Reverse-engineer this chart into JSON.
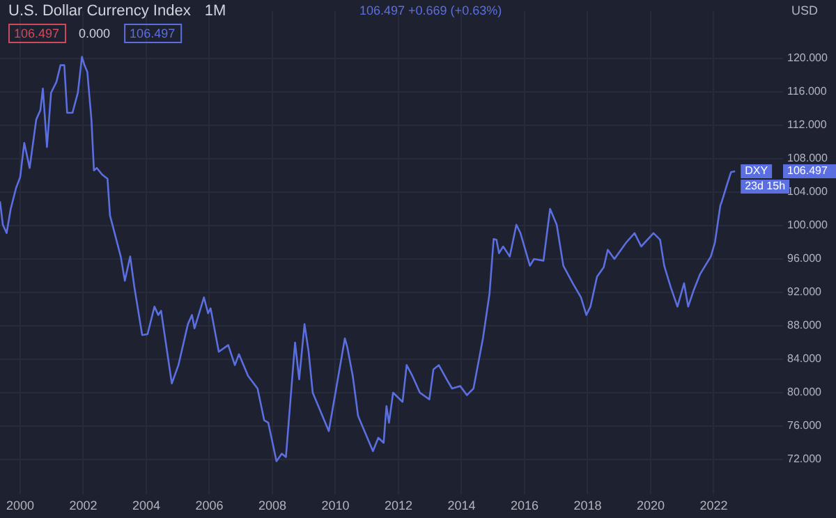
{
  "chart_data": {
    "type": "line",
    "title": "U.S. Dollar Currency Index",
    "subtitle": "1M",
    "ylabel": "USD",
    "annotations": [
      "106.497",
      "0.000",
      "106.497",
      "106.497 +0.669 (+0.63%)",
      {
        "text": "DXY",
        "x": 2022.68,
        "y": 106.5
      },
      "106.497",
      "23d 15h"
    ],
    "xlim": [
      1999.36,
      2024.2
    ],
    "xticks": [
      2000,
      2002,
      2004,
      2006,
      2008,
      2010,
      2012,
      2014,
      2016,
      2018,
      2020,
      2022
    ],
    "ylim": [
      67.8,
      125.7
    ],
    "yticks": [
      {
        "value": 72,
        "label": "72.000"
      },
      {
        "value": 76,
        "label": "76.000"
      },
      {
        "value": 80,
        "label": "80.000"
      },
      {
        "value": 84,
        "label": "84.000"
      },
      {
        "value": 88,
        "label": "88.000"
      },
      {
        "value": 92,
        "label": "92.000"
      },
      {
        "value": 96,
        "label": "96.000"
      },
      {
        "value": 100,
        "label": "100.000"
      },
      {
        "value": 104,
        "label": "104.000"
      },
      {
        "value": 108,
        "label": "108.000"
      },
      {
        "value": 112,
        "label": "112.000"
      },
      {
        "value": 116,
        "label": "116.000"
      },
      {
        "value": 120,
        "label": "120.000"
      }
    ],
    "grid": true,
    "legend": false,
    "marker": "none",
    "line_style": "solid",
    "series": [
      {
        "color": "#5c6fe0",
        "x": [
          1999.36,
          1999.45,
          1999.57,
          1999.7,
          1999.87,
          2000.0,
          2000.13,
          2000.3,
          2000.51,
          2000.64,
          2000.72,
          2000.85,
          2000.98,
          2001.15,
          2001.28,
          2001.4,
          2001.49,
          2001.66,
          2001.83,
          2001.96,
          2002.04,
          2002.13,
          2002.26,
          2002.34,
          2002.43,
          2002.6,
          2002.77,
          2002.85,
          2003.19,
          2003.32,
          2003.49,
          2003.62,
          2003.87,
          2004.04,
          2004.26,
          2004.38,
          2004.47,
          2004.81,
          2005.02,
          2005.32,
          2005.45,
          2005.53,
          2005.83,
          2005.96,
          2006.04,
          2006.3,
          2006.6,
          2006.81,
          2006.94,
          2007.23,
          2007.53,
          2007.74,
          2007.87,
          2008.13,
          2008.3,
          2008.43,
          2008.72,
          2008.85,
          2009.02,
          2009.15,
          2009.28,
          2009.79,
          2010.3,
          2010.38,
          2010.55,
          2010.72,
          2011.19,
          2011.36,
          2011.53,
          2011.62,
          2011.7,
          2011.83,
          2012.13,
          2012.26,
          2012.43,
          2012.68,
          2012.98,
          2013.11,
          2013.28,
          2013.53,
          2013.7,
          2013.96,
          2014.17,
          2014.38,
          2014.68,
          2014.89,
          2015.02,
          2015.11,
          2015.19,
          2015.32,
          2015.53,
          2015.74,
          2015.87,
          2016.17,
          2016.3,
          2016.6,
          2016.81,
          2017.02,
          2017.23,
          2017.53,
          2017.79,
          2017.96,
          2018.09,
          2018.3,
          2018.51,
          2018.64,
          2018.85,
          2019.23,
          2019.49,
          2019.7,
          2020.09,
          2020.3,
          2020.43,
          2020.51,
          2020.64,
          2020.85,
          2021.06,
          2021.19,
          2021.36,
          2021.57,
          2021.91,
          2022.04,
          2022.21,
          2022.26,
          2022.43,
          2022.55,
          2022.68
        ],
        "values": [
          102.9,
          100.1,
          99.1,
          102.0,
          104.5,
          105.8,
          109.9,
          106.9,
          112.7,
          113.8,
          116.4,
          109.4,
          115.9,
          117.2,
          119.2,
          119.2,
          113.5,
          113.5,
          115.9,
          120.2,
          119.2,
          118.4,
          112.7,
          106.6,
          106.9,
          106.1,
          105.6,
          101.2,
          96.3,
          93.4,
          96.3,
          92.7,
          86.9,
          87.0,
          90.3,
          89.3,
          89.8,
          81.1,
          83.3,
          88.2,
          89.3,
          87.7,
          91.4,
          89.5,
          90.1,
          84.9,
          85.7,
          83.3,
          84.6,
          82.0,
          80.5,
          76.7,
          76.4,
          71.8,
          72.7,
          72.3,
          86.0,
          81.6,
          88.2,
          84.9,
          80.0,
          75.4,
          86.5,
          85.4,
          82.0,
          77.2,
          73.0,
          74.6,
          74.0,
          78.4,
          76.4,
          80.0,
          78.9,
          83.3,
          82.1,
          80.0,
          79.2,
          82.8,
          83.3,
          81.6,
          80.5,
          80.8,
          79.7,
          80.5,
          86.5,
          91.9,
          98.4,
          98.3,
          96.7,
          97.5,
          96.3,
          100.1,
          99.1,
          95.2,
          96.0,
          95.8,
          102.0,
          100.1,
          95.2,
          93.1,
          91.4,
          89.3,
          90.3,
          93.9,
          95.0,
          97.1,
          96.0,
          98.0,
          99.1,
          97.5,
          99.1,
          98.3,
          95.2,
          94.2,
          92.6,
          90.3,
          93.1,
          90.3,
          92.2,
          94.2,
          96.3,
          98.0,
          102.4,
          102.9,
          105.0,
          106.4,
          106.5
        ]
      }
    ]
  }
}
